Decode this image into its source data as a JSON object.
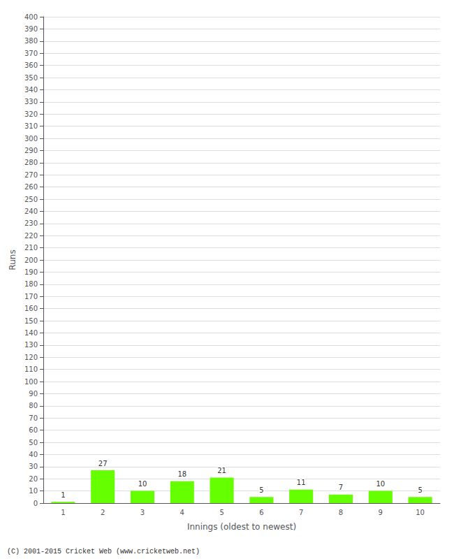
{
  "chart_data": {
    "type": "bar",
    "categories": [
      1,
      2,
      3,
      4,
      5,
      6,
      7,
      8,
      9,
      10
    ],
    "values": [
      1,
      27,
      10,
      18,
      21,
      5,
      11,
      7,
      10,
      5
    ],
    "color": "#66ff00",
    "xlabel": "Innings (oldest to newest)",
    "ylabel": "Runs",
    "ylim": [
      0,
      400
    ],
    "yticks": [
      0,
      10,
      20,
      30,
      40,
      50,
      60,
      70,
      80,
      90,
      100,
      110,
      120,
      130,
      140,
      150,
      160,
      170,
      180,
      190,
      200,
      210,
      220,
      230,
      240,
      250,
      260,
      270,
      280,
      290,
      300,
      310,
      320,
      330,
      340,
      350,
      360,
      370,
      380,
      390,
      400
    ],
    "grid": true,
    "data_labels": true,
    "annotations": [
      "(C) 2001-2015 Cricket Web (www.cricketweb.net)"
    ]
  }
}
